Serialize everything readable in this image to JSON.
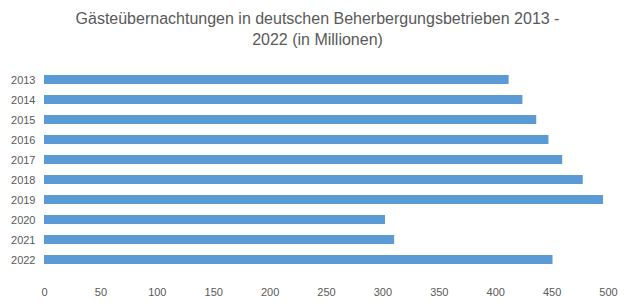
{
  "chart_data": {
    "type": "bar",
    "orientation": "horizontal",
    "title": "Gästeübernachtungen in deutschen Beherbergungsbetrieben 2013 - 2022 (in Millionen)",
    "categories": [
      "2013",
      "2014",
      "2015",
      "2016",
      "2017",
      "2018",
      "2019",
      "2020",
      "2021",
      "2022"
    ],
    "values": [
      411.9,
      424.1,
      436.4,
      447.2,
      459.4,
      477.6,
      495.6,
      302.3,
      310.4,
      450.8
    ],
    "color": "#5b9bd5",
    "xlim": [
      0,
      500
    ],
    "xticks": [
      0,
      50,
      100,
      150,
      200,
      250,
      300,
      350,
      400,
      450,
      500
    ],
    "grid": false
  }
}
